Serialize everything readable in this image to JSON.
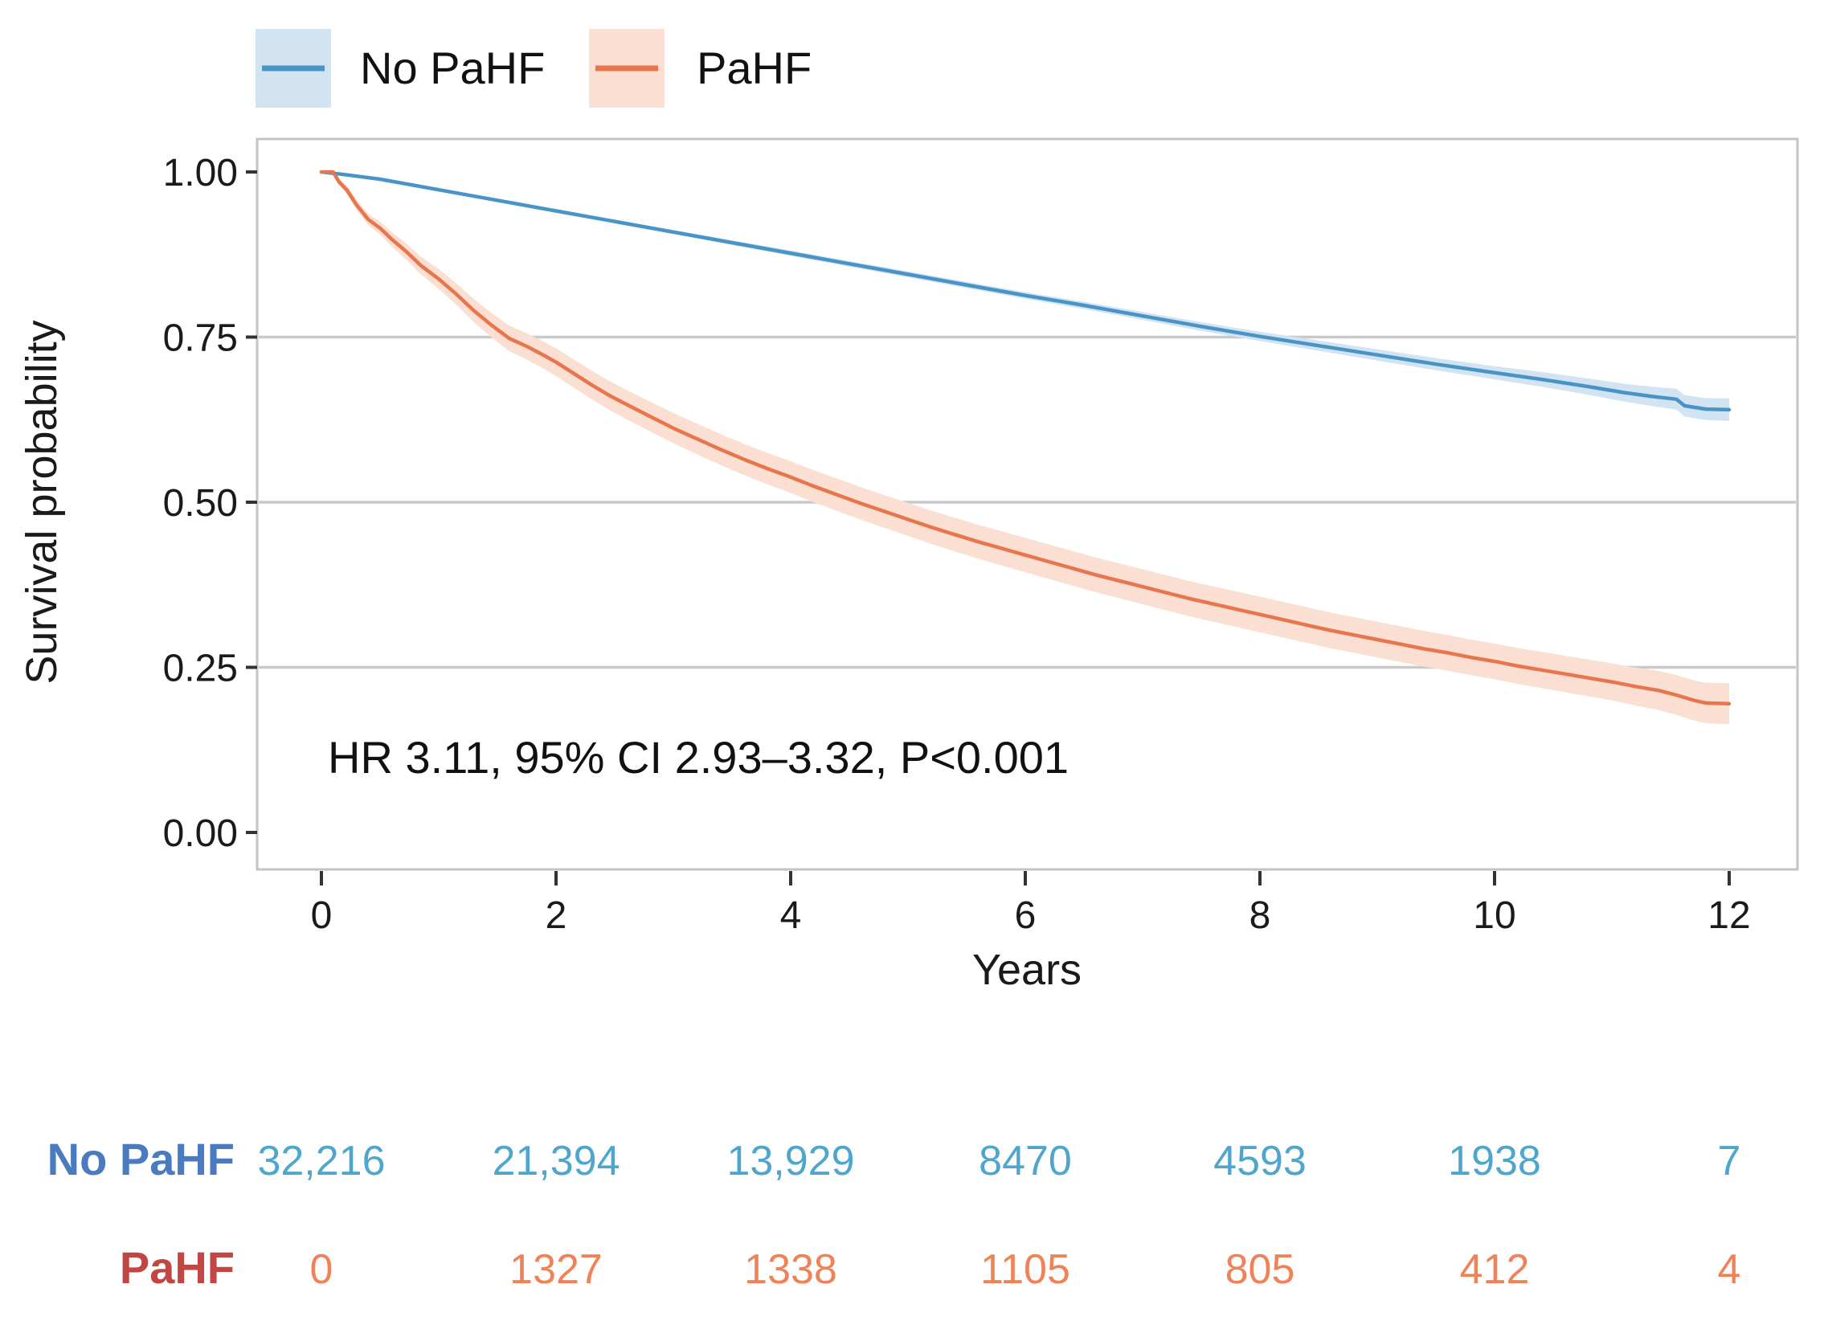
{
  "legend": {
    "items": [
      {
        "label": "No PaHF",
        "line_color": "#4894C6",
        "fill_color": "#D2E4F1"
      },
      {
        "label": "PaHF",
        "line_color": "#E8764D",
        "fill_color": "#FADFD2"
      }
    ]
  },
  "annotation": "HR 3.11, 95% CI 2.93–3.32, P<0.001",
  "chart_data": {
    "type": "line",
    "subtype": "kaplan-meier-survival",
    "title": "",
    "xlabel": "Years",
    "ylabel": "Survival probability",
    "xlim": [
      0,
      12
    ],
    "ylim": [
      0,
      1
    ],
    "x_ticks": [
      0,
      2,
      4,
      6,
      8,
      10,
      12
    ],
    "y_ticks": [
      {
        "value": 0.0,
        "label": "0.00"
      },
      {
        "value": 0.25,
        "label": "0.25"
      },
      {
        "value": 0.5,
        "label": "0.50"
      },
      {
        "value": 0.75,
        "label": "0.75"
      },
      {
        "value": 1.0,
        "label": "1.00"
      }
    ],
    "gridlines_y": [
      0.25,
      0.5,
      0.75
    ],
    "grid_color": "#C9C9C9",
    "panel_border_color": "#C4C4C4",
    "legend_position": "top-left",
    "series": [
      {
        "name": "No PaHF",
        "color": "#4894C6",
        "ci_color": "#D2E4F1",
        "points": [
          [
            0,
            1.0
          ],
          [
            0.2,
            0.996
          ],
          [
            0.5,
            0.989
          ],
          [
            1,
            0.973
          ],
          [
            1.5,
            0.957
          ],
          [
            2,
            0.941
          ],
          [
            2.5,
            0.925
          ],
          [
            3,
            0.909
          ],
          [
            3.5,
            0.893
          ],
          [
            4,
            0.877
          ],
          [
            4.5,
            0.861
          ],
          [
            5,
            0.845
          ],
          [
            5.5,
            0.829
          ],
          [
            6,
            0.813
          ],
          [
            6.5,
            0.798
          ],
          [
            7,
            0.782
          ],
          [
            7.5,
            0.766
          ],
          [
            8,
            0.751
          ],
          [
            8.5,
            0.737
          ],
          [
            9,
            0.723
          ],
          [
            9.5,
            0.709
          ],
          [
            10,
            0.696
          ],
          [
            10.4,
            0.686
          ],
          [
            10.8,
            0.675
          ],
          [
            11.1,
            0.666
          ],
          [
            11.35,
            0.66
          ],
          [
            11.55,
            0.656
          ],
          [
            11.62,
            0.646
          ],
          [
            11.8,
            0.641
          ],
          [
            12,
            0.64
          ]
        ],
        "ci_halfwidth": [
          [
            0,
            0.001
          ],
          [
            2,
            0.002
          ],
          [
            4,
            0.004
          ],
          [
            6,
            0.005
          ],
          [
            8,
            0.007
          ],
          [
            10,
            0.01
          ],
          [
            11,
            0.013
          ],
          [
            11.6,
            0.016
          ],
          [
            12,
            0.017
          ]
        ]
      },
      {
        "name": "PaHF",
        "color": "#E8764D",
        "ci_color": "#FADFD2",
        "points": [
          [
            0,
            1.0
          ],
          [
            0.1,
            1.0
          ],
          [
            0.15,
            0.985
          ],
          [
            0.22,
            0.972
          ],
          [
            0.3,
            0.95
          ],
          [
            0.4,
            0.928
          ],
          [
            0.5,
            0.915
          ],
          [
            0.6,
            0.898
          ],
          [
            0.72,
            0.88
          ],
          [
            0.85,
            0.858
          ],
          [
            1,
            0.838
          ],
          [
            1.15,
            0.815
          ],
          [
            1.3,
            0.79
          ],
          [
            1.45,
            0.768
          ],
          [
            1.6,
            0.748
          ],
          [
            1.75,
            0.736
          ],
          [
            1.9,
            0.722
          ],
          [
            2,
            0.712
          ],
          [
            2.15,
            0.695
          ],
          [
            2.3,
            0.678
          ],
          [
            2.45,
            0.662
          ],
          [
            2.6,
            0.648
          ],
          [
            2.8,
            0.63
          ],
          [
            3,
            0.612
          ],
          [
            3.2,
            0.596
          ],
          [
            3.4,
            0.58
          ],
          [
            3.6,
            0.565
          ],
          [
            3.8,
            0.551
          ],
          [
            4,
            0.538
          ],
          [
            4.2,
            0.524
          ],
          [
            4.4,
            0.511
          ],
          [
            4.6,
            0.498
          ],
          [
            4.8,
            0.486
          ],
          [
            5,
            0.474
          ],
          [
            5.2,
            0.462
          ],
          [
            5.4,
            0.451
          ],
          [
            5.6,
            0.44
          ],
          [
            5.8,
            0.43
          ],
          [
            6,
            0.42
          ],
          [
            6.2,
            0.41
          ],
          [
            6.4,
            0.4
          ],
          [
            6.6,
            0.39
          ],
          [
            6.8,
            0.381
          ],
          [
            7,
            0.372
          ],
          [
            7.2,
            0.363
          ],
          [
            7.4,
            0.354
          ],
          [
            7.6,
            0.346
          ],
          [
            7.8,
            0.338
          ],
          [
            8,
            0.33
          ],
          [
            8.2,
            0.322
          ],
          [
            8.4,
            0.314
          ],
          [
            8.6,
            0.306
          ],
          [
            8.8,
            0.299
          ],
          [
            9,
            0.292
          ],
          [
            9.2,
            0.285
          ],
          [
            9.4,
            0.278
          ],
          [
            9.6,
            0.272
          ],
          [
            9.8,
            0.265
          ],
          [
            10,
            0.259
          ],
          [
            10.2,
            0.252
          ],
          [
            10.4,
            0.246
          ],
          [
            10.6,
            0.24
          ],
          [
            10.8,
            0.234
          ],
          [
            11,
            0.228
          ],
          [
            11.2,
            0.221
          ],
          [
            11.4,
            0.215
          ],
          [
            11.55,
            0.208
          ],
          [
            11.7,
            0.2
          ],
          [
            11.8,
            0.196
          ],
          [
            12,
            0.195
          ]
        ],
        "ci_halfwidth": [
          [
            0,
            0.002
          ],
          [
            0.2,
            0.006
          ],
          [
            0.5,
            0.01
          ],
          [
            1,
            0.015
          ],
          [
            1.5,
            0.019
          ],
          [
            2,
            0.021
          ],
          [
            3,
            0.023
          ],
          [
            4,
            0.024
          ],
          [
            6,
            0.026
          ],
          [
            8,
            0.027
          ],
          [
            10,
            0.027
          ],
          [
            11,
            0.028
          ],
          [
            11.5,
            0.03
          ],
          [
            12,
            0.031
          ]
        ]
      }
    ]
  },
  "risk_table": {
    "rows": [
      {
        "label": "No PaHF",
        "label_color": "#4A7ABF",
        "value_color": "#4FA6CC",
        "values": [
          "32,216",
          "21,394",
          "13,929",
          "8470",
          "4593",
          "1938",
          "7"
        ]
      },
      {
        "label": "PaHF",
        "label_color": "#C04744",
        "value_color": "#EF8257",
        "values": [
          "0",
          "1327",
          "1338",
          "1105",
          "805",
          "412",
          "4"
        ]
      }
    ]
  }
}
